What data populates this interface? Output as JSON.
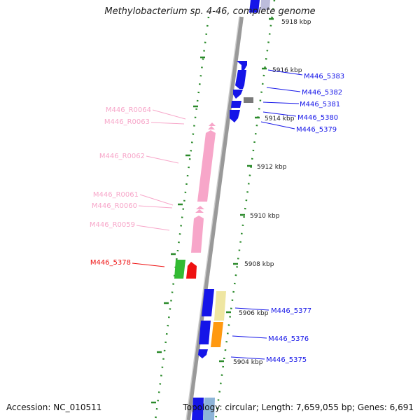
{
  "title": "Methylobacterium sp. 4-46, complete genome",
  "accession_text": "Accession: NC_010511",
  "topology_text": "Topology: circular; Length: 7,659,055 bp; Genes: 6,691",
  "colors": {
    "cds_blue": "#1515e8",
    "cds_gray": "#7a7a7a",
    "rna_pink": "#f7a6c9",
    "highlight_red": "#ee1111",
    "highlight_green": "#33bb33",
    "khaki": "#efe6a2",
    "orange": "#ff9911",
    "light_blue": "#8db4d8",
    "ruler_green": "#2a8a2a",
    "axis_gray": "#999999"
  },
  "ticks": [
    {
      "label": "5918 kbp"
    },
    {
      "label": "5916 kbp"
    },
    {
      "label": "5914 kbp"
    },
    {
      "label": "5912 kbp"
    },
    {
      "label": "5910 kbp"
    },
    {
      "label": "5908 kbp"
    },
    {
      "label": "5906 kbp"
    },
    {
      "label": "5904 kbp"
    }
  ],
  "right_genes": [
    {
      "name": "M446_5383"
    },
    {
      "name": "M446_5382"
    },
    {
      "name": "M446_5381"
    },
    {
      "name": "M446_5380"
    },
    {
      "name": "M446_5379"
    },
    {
      "name": "M446_5377"
    },
    {
      "name": "M446_5376"
    },
    {
      "name": "M446_5375"
    }
  ],
  "left_genes": [
    {
      "name": "M446_R0064"
    },
    {
      "name": "M446_R0063"
    },
    {
      "name": "M446_R0062"
    },
    {
      "name": "M446_R0061"
    },
    {
      "name": "M446_R0060"
    },
    {
      "name": "M446_R0059"
    },
    {
      "name": "M446_5378"
    }
  ]
}
